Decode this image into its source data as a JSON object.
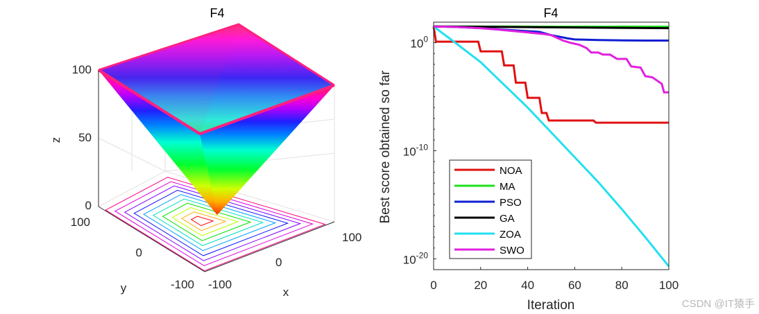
{
  "chart_data": [
    {
      "type": "surface",
      "title": "F4",
      "xlabel": "x",
      "ylabel": "y",
      "zlabel": "z",
      "x_ticks": [
        "-100",
        "0",
        "100"
      ],
      "y_ticks": [
        "-100",
        "0",
        "100"
      ],
      "z_ticks": [
        "0",
        "50",
        "100"
      ],
      "xlim": [
        -100,
        100
      ],
      "ylim": [
        -100,
        100
      ],
      "zlim": [
        0,
        100
      ],
      "colormap": "hsv",
      "contour_levels": 10
    },
    {
      "type": "line",
      "title": "F4",
      "xlabel": "Iteration",
      "ylabel": "Best score obtained so far",
      "yscale": "log",
      "xlim": [
        0,
        100
      ],
      "ylim_log10": [
        -21,
        1.9
      ],
      "x_ticks": [
        "0",
        "20",
        "40",
        "60",
        "80",
        "100"
      ],
      "y_ticks": [
        {
          "base": "10",
          "exp": "0",
          "value": 0
        },
        {
          "base": "10",
          "exp": "-10",
          "value": -10
        },
        {
          "base": "10",
          "exp": "-20",
          "value": -20
        }
      ],
      "legend_position": "lower-left",
      "series": [
        {
          "name": "NOA",
          "color": "#e01010",
          "x": [
            0,
            1,
            19,
            20,
            29,
            30,
            34,
            35,
            39,
            40,
            45,
            46,
            48,
            49,
            68,
            69,
            100
          ],
          "log10y": [
            1.5,
            0.1,
            0.1,
            -0.8,
            -0.8,
            -2.1,
            -2.1,
            -3.7,
            -3.7,
            -5.1,
            -5.1,
            -6.5,
            -6.5,
            -7.2,
            -7.2,
            -7.4,
            -7.4
          ]
        },
        {
          "name": "MA",
          "color": "#1ee01e",
          "x": [
            0,
            100
          ],
          "log10y": [
            1.5,
            1.48
          ]
        },
        {
          "name": "PSO",
          "color": "#0f1fd0",
          "x": [
            0,
            10,
            20,
            30,
            45,
            50,
            57,
            60,
            70,
            80,
            90,
            100
          ],
          "log10y": [
            1.5,
            1.45,
            1.35,
            1.2,
            1.0,
            0.7,
            0.4,
            0.3,
            0.25,
            0.22,
            0.2,
            0.2
          ]
        },
        {
          "name": "GA",
          "color": "#000000",
          "x": [
            0,
            100
          ],
          "log10y": [
            1.5,
            1.35
          ]
        },
        {
          "name": "ZOA",
          "color": "#22e0f0",
          "x": [
            0,
            8,
            20,
            30,
            40,
            50,
            60,
            70,
            80,
            90,
            100
          ],
          "log10y": [
            1.5,
            0.2,
            -1.8,
            -3.9,
            -6.0,
            -8.3,
            -10.6,
            -12.9,
            -15.4,
            -18.0,
            -20.7
          ]
        },
        {
          "name": "SWO",
          "color": "#e020e0",
          "x": [
            0,
            10,
            20,
            28,
            33,
            40,
            47,
            50,
            55,
            58,
            62,
            65,
            67,
            70,
            72,
            75,
            78,
            82,
            84,
            88,
            90,
            93,
            95,
            97,
            98,
            100
          ],
          "log10y": [
            1.5,
            1.45,
            1.35,
            1.2,
            1.1,
            0.95,
            0.8,
            0.7,
            0.2,
            0.0,
            -0.2,
            -0.5,
            -0.9,
            -0.9,
            -1.1,
            -1.1,
            -1.5,
            -1.5,
            -2.2,
            -2.3,
            -3.1,
            -3.2,
            -3.5,
            -3.8,
            -4.6,
            -4.6
          ]
        }
      ]
    }
  ],
  "watermark": "CSDN @IT猿手"
}
